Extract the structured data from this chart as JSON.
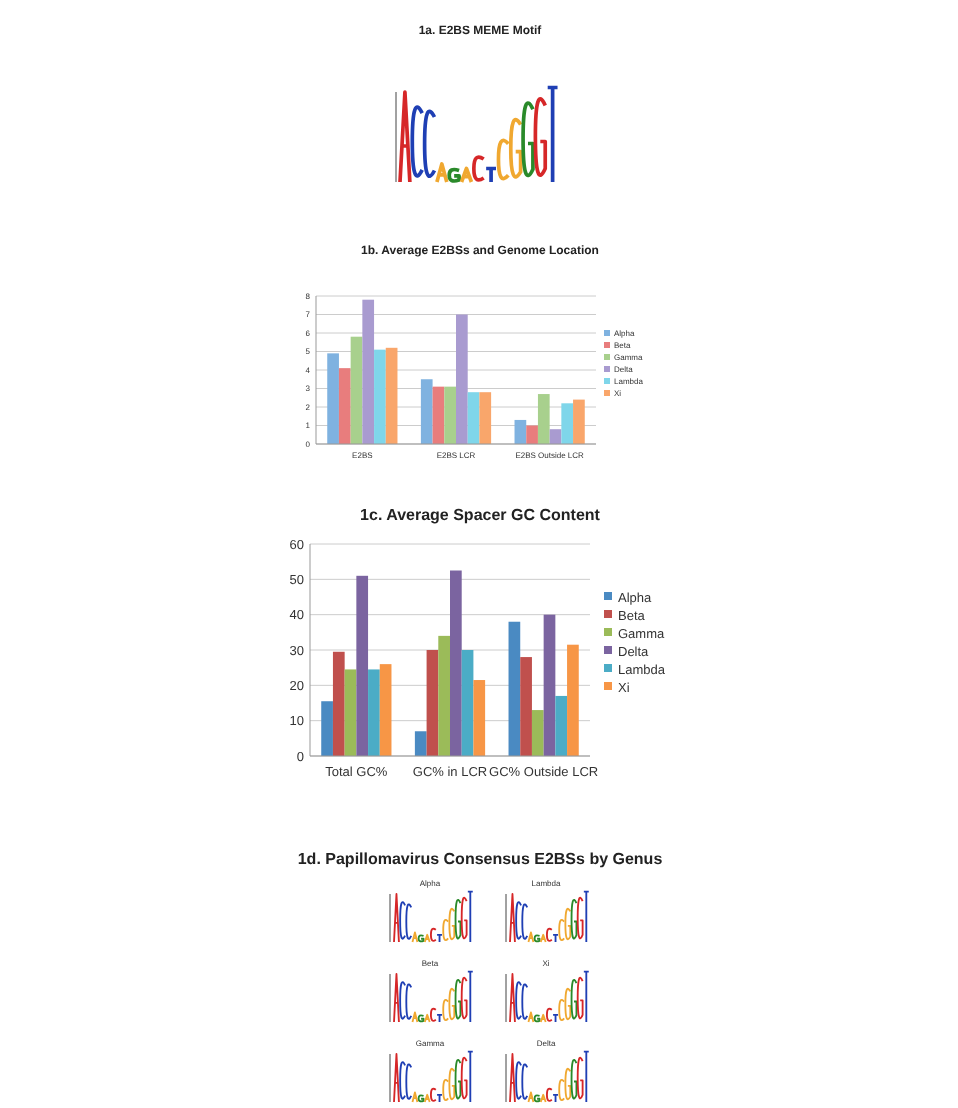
{
  "chart_data": [
    {
      "type": "other",
      "title": "1a. E2BS MEME Motif"
    },
    {
      "type": "bar",
      "title": "1b. Average E2BSs and Genome Location",
      "categories": [
        "E2BS",
        "E2BS LCR",
        "E2BS Outside LCR"
      ],
      "ylim": [
        0,
        8
      ],
      "yticks": [
        0,
        1,
        2,
        3,
        4,
        5,
        6,
        7,
        8
      ],
      "grid": "y",
      "legend": "right",
      "series": [
        {
          "name": "Alpha",
          "color": "#7fb2e0",
          "values": [
            4.9,
            3.5,
            1.3
          ]
        },
        {
          "name": "Beta",
          "color": "#e87d7d",
          "values": [
            4.1,
            3.1,
            1.0
          ]
        },
        {
          "name": "Gamma",
          "color": "#a8d08d",
          "values": [
            5.8,
            3.1,
            2.7
          ]
        },
        {
          "name": "Delta",
          "color": "#a99bd0",
          "values": [
            7.8,
            7.0,
            0.8
          ]
        },
        {
          "name": "Lambda",
          "color": "#7fd6ea",
          "values": [
            5.1,
            2.8,
            2.2
          ]
        },
        {
          "name": "Xi",
          "color": "#f9a66b",
          "values": [
            5.2,
            2.8,
            2.4
          ]
        }
      ]
    },
    {
      "type": "bar",
      "title": "1c. Average Spacer GC Content",
      "categories": [
        "Total GC%",
        "GC% in LCR",
        "GC% Outside LCR"
      ],
      "ylim": [
        0,
        60
      ],
      "yticks": [
        0,
        10,
        20,
        30,
        40,
        50,
        60
      ],
      "grid": "y",
      "legend": "right",
      "series": [
        {
          "name": "Alpha",
          "color": "#4a8ac2",
          "values": [
            15.5,
            7,
            38
          ]
        },
        {
          "name": "Beta",
          "color": "#c0504d",
          "values": [
            29.5,
            30,
            28
          ]
        },
        {
          "name": "Gamma",
          "color": "#9bbb59",
          "values": [
            24.5,
            34,
            13
          ]
        },
        {
          "name": "Delta",
          "color": "#7b64a0",
          "values": [
            51,
            52.5,
            40
          ]
        },
        {
          "name": "Lambda",
          "color": "#4bacc6",
          "values": [
            24.5,
            30,
            17
          ]
        },
        {
          "name": "Xi",
          "color": "#f79646",
          "values": [
            26,
            21.5,
            31.5
          ]
        }
      ]
    },
    {
      "type": "other",
      "title": "1d. Papillomavirus Consensus E2BSs by Genus",
      "annotations": [
        "Alpha",
        "Lambda",
        "Beta",
        "Xi",
        "Gamma",
        "Delta"
      ]
    }
  ]
}
